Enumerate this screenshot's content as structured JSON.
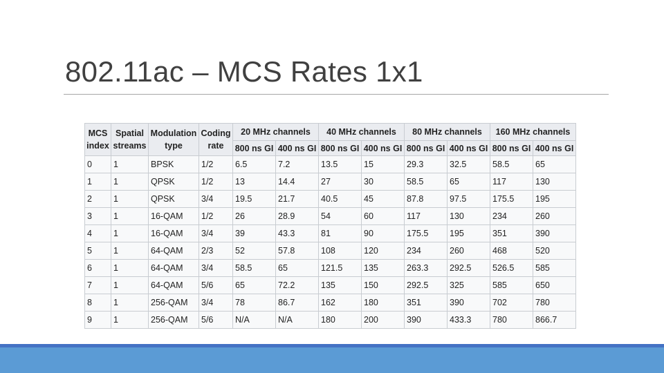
{
  "slide": {
    "title": "802.11ac – MCS Rates 1x1"
  },
  "table": {
    "headers": {
      "mcs_index": [
        "MCS",
        "index"
      ],
      "spatial_streams": [
        "Spatial",
        "streams"
      ],
      "modulation_type": [
        "Modulation",
        "type"
      ],
      "coding_rate": [
        "Coding",
        "rate"
      ],
      "channels": [
        "20 MHz channels",
        "40 MHz channels",
        "80 MHz channels",
        "160 MHz channels"
      ],
      "guard_intervals": [
        "800 ns GI",
        "400 ns GI",
        "800 ns GI",
        "400 ns GI",
        "800 ns GI",
        "400 ns GI",
        "800 ns GI",
        "400 ns GI"
      ]
    },
    "rows": [
      [
        "0",
        "1",
        "BPSK",
        "1/2",
        "6.5",
        "7.2",
        "13.5",
        "15",
        "29.3",
        "32.5",
        "58.5",
        "65"
      ],
      [
        "1",
        "1",
        "QPSK",
        "1/2",
        "13",
        "14.4",
        "27",
        "30",
        "58.5",
        "65",
        "117",
        "130"
      ],
      [
        "2",
        "1",
        "QPSK",
        "3/4",
        "19.5",
        "21.7",
        "40.5",
        "45",
        "87.8",
        "97.5",
        "175.5",
        "195"
      ],
      [
        "3",
        "1",
        "16-QAM",
        "1/2",
        "26",
        "28.9",
        "54",
        "60",
        "117",
        "130",
        "234",
        "260"
      ],
      [
        "4",
        "1",
        "16-QAM",
        "3/4",
        "39",
        "43.3",
        "81",
        "90",
        "175.5",
        "195",
        "351",
        "390"
      ],
      [
        "5",
        "1",
        "64-QAM",
        "2/3",
        "52",
        "57.8",
        "108",
        "120",
        "234",
        "260",
        "468",
        "520"
      ],
      [
        "6",
        "1",
        "64-QAM",
        "3/4",
        "58.5",
        "65",
        "121.5",
        "135",
        "263.3",
        "292.5",
        "526.5",
        "585"
      ],
      [
        "7",
        "1",
        "64-QAM",
        "5/6",
        "65",
        "72.2",
        "135",
        "150",
        "292.5",
        "325",
        "585",
        "650"
      ],
      [
        "8",
        "1",
        "256-QAM",
        "3/4",
        "78",
        "86.7",
        "162",
        "180",
        "351",
        "390",
        "702",
        "780"
      ],
      [
        "9",
        "1",
        "256-QAM",
        "5/6",
        "N/A",
        "N/A",
        "180",
        "200",
        "390",
        "433.3",
        "780",
        "866.7"
      ]
    ]
  },
  "colors": {
    "title_text": "#404040",
    "header_bg": "#eaecf0",
    "cell_bg": "#f8f9fa",
    "border": "#c8ccd1",
    "bottom_bar": "#5b9bd5",
    "bottom_bar_edge": "#4472c4"
  }
}
